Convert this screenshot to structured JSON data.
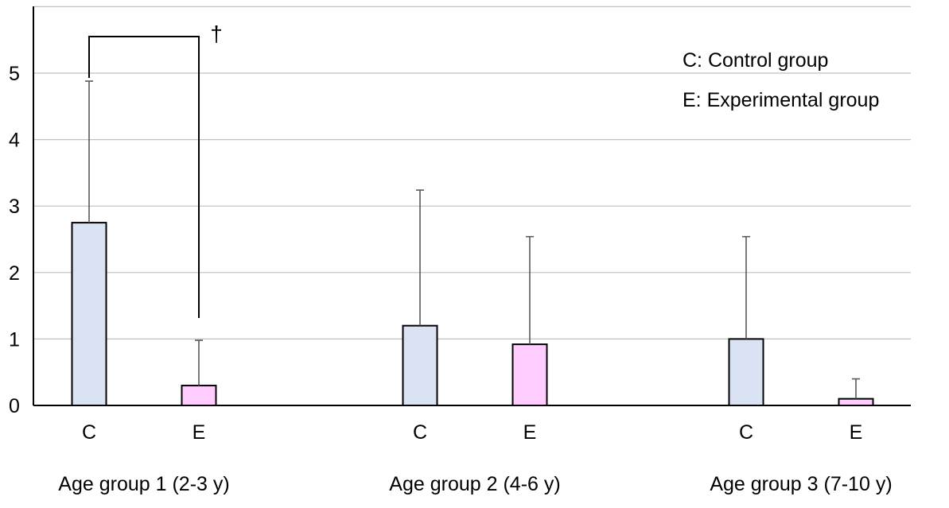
{
  "chart_data": {
    "type": "bar",
    "title": "",
    "xlabel": "",
    "ylabel": "",
    "ylim": [
      0,
      6
    ],
    "yticks": [
      0,
      1,
      2,
      3,
      4,
      5
    ],
    "ytick_labels": [
      "0",
      "1",
      "2",
      "3",
      "4",
      "5"
    ],
    "grid": true,
    "groups": [
      {
        "label": "Age group 1 (2-3 y)",
        "bars": [
          {
            "category": "C",
            "value": 2.75,
            "error": 2.13,
            "color": "#dae3f3"
          },
          {
            "category": "E",
            "value": 0.3,
            "error": 0.68,
            "color": "#ffccff"
          }
        ]
      },
      {
        "label": "Age group 2 (4-6 y)",
        "bars": [
          {
            "category": "C",
            "value": 1.2,
            "error": 2.04,
            "color": "#dae3f3"
          },
          {
            "category": "E",
            "value": 0.92,
            "error": 1.62,
            "color": "#ffccff"
          }
        ]
      },
      {
        "label": "Age group 3 (7-10 y)",
        "bars": [
          {
            "category": "C",
            "value": 1.0,
            "error": 1.54,
            "color": "#dae3f3"
          },
          {
            "category": "E",
            "value": 0.1,
            "error": 0.3,
            "color": "#ffccff"
          }
        ]
      }
    ],
    "legend": [
      {
        "key": "C",
        "text": "C: Control group"
      },
      {
        "key": "E",
        "text": "E: Experimental group"
      }
    ],
    "legend_position": "top-right",
    "significance": {
      "group": "Age group 1 (2-3 y)",
      "between": [
        "C",
        "E"
      ],
      "symbol": "†"
    }
  }
}
